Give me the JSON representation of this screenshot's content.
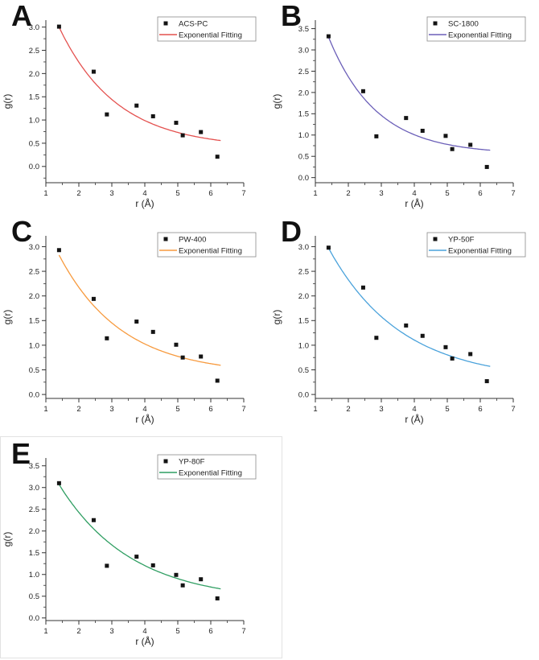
{
  "figure": {
    "background": "#ffffff",
    "selection_box_border": "#e2e2e2",
    "marker_color": "#141414",
    "axis_color": "#333333"
  },
  "chart_data": [
    {
      "panel": "A",
      "type": "scatter",
      "xlabel": "r (Å)",
      "ylabel": "g(r)",
      "xlim": [
        1,
        7
      ],
      "ylim": [
        -0.35,
        3.15
      ],
      "xticks": [
        1,
        2,
        3,
        4,
        5,
        6,
        7
      ],
      "yticks": [
        0,
        0.5,
        1,
        1.5,
        2,
        2.5,
        3
      ],
      "x": [
        1.4,
        2.45,
        2.85,
        3.75,
        4.25,
        4.95,
        5.15,
        5.7,
        6.2
      ],
      "series": [
        {
          "name": "ACS-PC",
          "type": "scatter",
          "color": "#141414",
          "values": [
            3.01,
            2.04,
            1.12,
            1.31,
            1.08,
            0.94,
            0.67,
            0.74,
            0.21
          ]
        },
        {
          "name": "Exponential Fitting",
          "type": "line",
          "color": "#e4514f",
          "fit": {
            "a": 2.6,
            "tau": 1.75,
            "c": 0.4,
            "x0": 1.4,
            "range": [
              1.4,
              6.3
            ]
          }
        }
      ]
    },
    {
      "panel": "B",
      "type": "scatter",
      "xlabel": "r (Å)",
      "ylabel": "g(r)",
      "xlim": [
        1,
        7
      ],
      "ylim": [
        -0.12,
        3.7
      ],
      "xticks": [
        1,
        2,
        3,
        4,
        5,
        6,
        7
      ],
      "yticks": [
        0,
        0.5,
        1,
        1.5,
        2,
        2.5,
        3,
        3.5
      ],
      "x": [
        1.4,
        2.45,
        2.85,
        3.75,
        4.25,
        4.95,
        5.15,
        5.7,
        6.2
      ],
      "series": [
        {
          "name": "SC-1800",
          "type": "scatter",
          "color": "#141414",
          "values": [
            3.32,
            2.03,
            0.97,
            1.4,
            1.1,
            0.98,
            0.67,
            0.77,
            0.25
          ]
        },
        {
          "name": "Exponential Fitting",
          "type": "line",
          "color": "#6b5fb8",
          "fit": {
            "a": 2.75,
            "tau": 1.45,
            "c": 0.55,
            "x0": 1.4,
            "range": [
              1.4,
              6.3
            ]
          }
        }
      ]
    },
    {
      "panel": "C",
      "type": "scatter",
      "xlabel": "r (Å)",
      "ylabel": "g(r)",
      "xlim": [
        1,
        7
      ],
      "ylim": [
        -0.08,
        3.22
      ],
      "xticks": [
        1,
        2,
        3,
        4,
        5,
        6,
        7
      ],
      "yticks": [
        0,
        0.5,
        1,
        1.5,
        2,
        2.5,
        3
      ],
      "x": [
        1.4,
        2.45,
        2.85,
        3.75,
        4.25,
        4.95,
        5.15,
        5.7,
        6.2
      ],
      "series": [
        {
          "name": "PW-400",
          "type": "scatter",
          "color": "#141414",
          "values": [
            2.93,
            1.94,
            1.14,
            1.48,
            1.27,
            1.01,
            0.75,
            0.77,
            0.28
          ]
        },
        {
          "name": "Exponential Fitting",
          "type": "line",
          "color": "#f79a3e",
          "fit": {
            "a": 2.42,
            "tau": 1.9,
            "c": 0.41,
            "x0": 1.4,
            "range": [
              1.4,
              6.3
            ]
          }
        }
      ]
    },
    {
      "panel": "D",
      "type": "scatter",
      "xlabel": "r (Å)",
      "ylabel": "g(r)",
      "xlim": [
        1,
        7
      ],
      "ylim": [
        -0.08,
        3.22
      ],
      "xticks": [
        1,
        2,
        3,
        4,
        5,
        6,
        7
      ],
      "yticks": [
        0,
        0.5,
        1,
        1.5,
        2,
        2.5,
        3
      ],
      "x": [
        1.4,
        2.45,
        2.85,
        3.75,
        4.25,
        4.95,
        5.15,
        5.7,
        6.2
      ],
      "series": [
        {
          "name": "YP-50F",
          "type": "scatter",
          "color": "#141414",
          "values": [
            2.98,
            2.17,
            1.15,
            1.4,
            1.19,
            0.96,
            0.73,
            0.82,
            0.27
          ]
        },
        {
          "name": "Exponential Fitting",
          "type": "line",
          "color": "#4aa2db",
          "fit": {
            "a": 2.69,
            "tau": 2.2,
            "c": 0.28,
            "x0": 1.4,
            "range": [
              1.4,
              6.3
            ]
          }
        }
      ]
    },
    {
      "panel": "E",
      "type": "scatter",
      "xlabel": "r (Å)",
      "ylabel": "g(r)",
      "xlim": [
        1,
        7
      ],
      "ylim": [
        -0.06,
        3.68
      ],
      "xticks": [
        1,
        2,
        3,
        4,
        5,
        6,
        7
      ],
      "yticks": [
        0,
        0.5,
        1,
        1.5,
        2,
        2.5,
        3,
        3.5
      ],
      "x": [
        1.4,
        2.45,
        2.85,
        3.75,
        4.25,
        4.95,
        5.15,
        5.7,
        6.2
      ],
      "series": [
        {
          "name": "YP-80F",
          "type": "scatter",
          "color": "#141414",
          "values": [
            3.1,
            2.25,
            1.2,
            1.41,
            1.21,
            0.99,
            0.75,
            0.89,
            0.45
          ]
        },
        {
          "name": "Exponential Fitting",
          "type": "line",
          "color": "#2f9e62",
          "fit": {
            "a": 2.69,
            "tau": 2.2,
            "c": 0.38,
            "x0": 1.4,
            "range": [
              1.4,
              6.3
            ]
          }
        }
      ]
    }
  ]
}
